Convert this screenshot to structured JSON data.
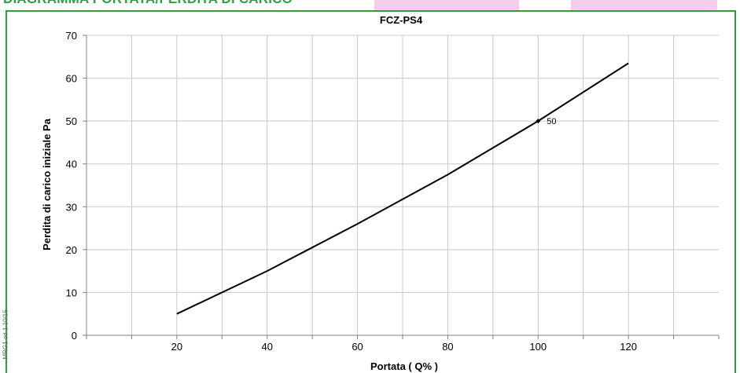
{
  "page": {
    "heading": "DIAGRAMMA PORTATA/PERDITA DI CARICO",
    "side_note": "MRG1 ed.1 10/15"
  },
  "colors": {
    "accent_green": "#2e9e3e",
    "tab_pink": "#f5cdea",
    "grid": "#c8c8c8",
    "line": "#000000"
  },
  "chart_data": {
    "type": "line",
    "title": "FCZ-PS4",
    "xlabel": "Portata ( Q% )",
    "ylabel": "Perdita di carico iniziale Pa",
    "xlim": [
      0,
      140
    ],
    "ylim": [
      0,
      70
    ],
    "x_ticks": [
      20,
      40,
      60,
      80,
      100,
      120
    ],
    "y_ticks": [
      0,
      10,
      20,
      30,
      40,
      50,
      60,
      70
    ],
    "grid": true,
    "legend": "none",
    "series": [
      {
        "x": [
          20,
          40,
          60,
          80,
          100,
          120
        ],
        "y": [
          5,
          15,
          26,
          37.5,
          50,
          63.5
        ]
      }
    ],
    "annotations": [
      {
        "x": 100,
        "y": 50,
        "text": "50"
      }
    ]
  }
}
